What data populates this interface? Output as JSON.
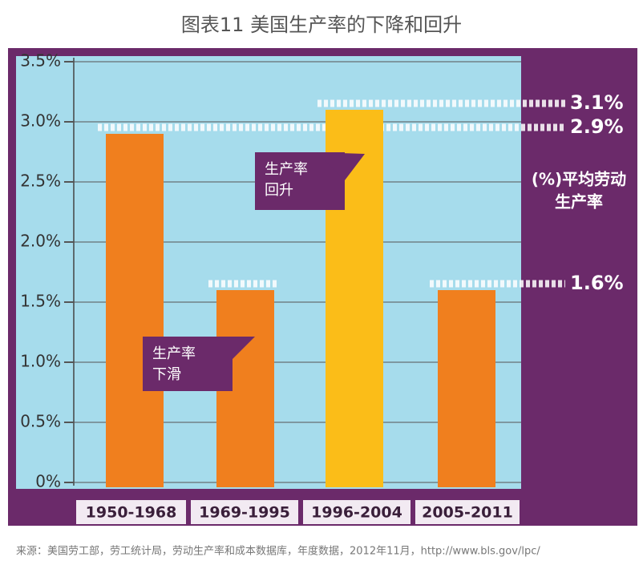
{
  "chart_data": {
    "type": "bar",
    "title": "图表11 美国生产率的下降和回升",
    "y_label": [
      "(%)平均劳动",
      "生产率"
    ],
    "categories": [
      "1950-1968",
      "1969-1995",
      "1996-2004",
      "2005-2011"
    ],
    "values": [
      2.9,
      1.6,
      3.1,
      1.6
    ],
    "value_labels": [
      "2.9%",
      null,
      "3.1%",
      "1.6%"
    ],
    "colors": [
      "#f07f1e",
      "#f07f1e",
      "#fbbd18",
      "#f07f1e"
    ],
    "ylim": [
      0,
      3.5
    ],
    "yticks": [
      {
        "value": 0,
        "label": "0%"
      },
      {
        "value": 0.5,
        "label": "0.5%"
      },
      {
        "value": 1,
        "label": "1.0%"
      },
      {
        "value": 1.5,
        "label": "1.5%"
      },
      {
        "value": 2,
        "label": "2.0%"
      },
      {
        "value": 2.5,
        "label": "2.5%"
      },
      {
        "value": 3,
        "label": "3.0%"
      },
      {
        "value": 3.5,
        "label": "3.5%"
      }
    ],
    "grid": true,
    "annotations": [
      {
        "lines": [
          "生产率",
          "回升"
        ]
      },
      {
        "lines": [
          "生产率",
          "下滑"
        ]
      }
    ],
    "source": "来源：美国劳工部，劳工统计局，劳动生产率和成本数据库，年度数据，2012年11月，http://www.bls.gov/lpc/"
  }
}
